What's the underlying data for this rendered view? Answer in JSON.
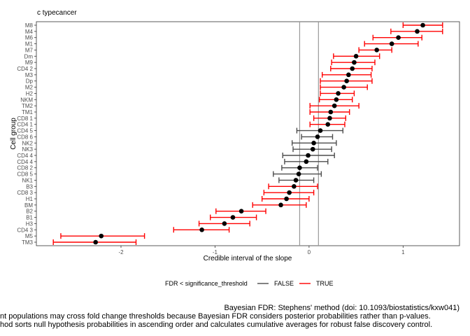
{
  "chart_data": {
    "type": "errorbar-dotplot",
    "title": "c typecancer",
    "xlabel": "Credible interval of the slope",
    "ylabel": "Cell group",
    "xlim": [
      -2.9,
      1.6
    ],
    "x_ticks": [
      -2,
      -1,
      0,
      1
    ],
    "x_tick_labels": [
      "-2",
      "-1",
      "0",
      "1"
    ],
    "reference_lines": [
      -0.1,
      0.1
    ],
    "legend": {
      "title": "FDR < significance_threshold",
      "position": "bottom",
      "entries": [
        {
          "label": "FALSE",
          "color": "#4d4d4d"
        },
        {
          "label": "TRUE",
          "color": "#ff0000"
        }
      ]
    },
    "series_colors": {
      "FALSE": "#4d4d4d",
      "TRUE": "#ff0000"
    },
    "points": [
      {
        "label": "M8",
        "estimate": 1.21,
        "lower": 1.0,
        "upper": 1.42,
        "significant": "TRUE"
      },
      {
        "label": "M4",
        "estimate": 1.15,
        "lower": 0.87,
        "upper": 1.42,
        "significant": "TRUE"
      },
      {
        "label": "M6",
        "estimate": 0.95,
        "lower": 0.68,
        "upper": 1.2,
        "significant": "TRUE"
      },
      {
        "label": "M1",
        "estimate": 0.88,
        "lower": 0.59,
        "upper": 1.16,
        "significant": "TRUE"
      },
      {
        "label": "M7",
        "estimate": 0.72,
        "lower": 0.53,
        "upper": 0.88,
        "significant": "TRUE"
      },
      {
        "label": "Dm",
        "estimate": 0.5,
        "lower": 0.26,
        "upper": 0.75,
        "significant": "TRUE"
      },
      {
        "label": "M9",
        "estimate": 0.48,
        "lower": 0.24,
        "upper": 0.7,
        "significant": "TRUE"
      },
      {
        "label": "CD4 2",
        "estimate": 0.46,
        "lower": 0.23,
        "upper": 0.67,
        "significant": "TRUE"
      },
      {
        "label": "M3",
        "estimate": 0.42,
        "lower": 0.14,
        "upper": 0.66,
        "significant": "TRUE"
      },
      {
        "label": "Dp",
        "estimate": 0.4,
        "lower": 0.12,
        "upper": 0.67,
        "significant": "TRUE"
      },
      {
        "label": "M2",
        "estimate": 0.37,
        "lower": 0.12,
        "upper": 0.62,
        "significant": "TRUE"
      },
      {
        "label": "H2",
        "estimate": 0.31,
        "lower": 0.12,
        "upper": 0.48,
        "significant": "TRUE"
      },
      {
        "label": "NKM",
        "estimate": 0.29,
        "lower": 0.11,
        "upper": 0.46,
        "significant": "TRUE"
      },
      {
        "label": "TM2",
        "estimate": 0.27,
        "lower": 0.01,
        "upper": 0.53,
        "significant": "TRUE"
      },
      {
        "label": "TM1",
        "estimate": 0.23,
        "lower": 0.01,
        "upper": 0.43,
        "significant": "TRUE"
      },
      {
        "label": "CD8 1",
        "estimate": 0.22,
        "lower": 0.05,
        "upper": 0.39,
        "significant": "TRUE"
      },
      {
        "label": "CD4 1",
        "estimate": 0.2,
        "lower": 0.01,
        "upper": 0.38,
        "significant": "TRUE"
      },
      {
        "label": "CD4 5",
        "estimate": 0.12,
        "lower": -0.13,
        "upper": 0.36,
        "significant": "FALSE"
      },
      {
        "label": "CD8 6",
        "estimate": 0.09,
        "lower": -0.08,
        "upper": 0.25,
        "significant": "FALSE"
      },
      {
        "label": "NK2",
        "estimate": 0.05,
        "lower": -0.18,
        "upper": 0.29,
        "significant": "FALSE"
      },
      {
        "label": "NK3",
        "estimate": 0.04,
        "lower": -0.17,
        "upper": 0.24,
        "significant": "FALSE"
      },
      {
        "label": "CD4 4",
        "estimate": -0.01,
        "lower": -0.28,
        "upper": 0.27,
        "significant": "FALSE"
      },
      {
        "label": "CD4 4",
        "estimate": -0.03,
        "lower": -0.26,
        "upper": 0.2,
        "significant": "FALSE"
      },
      {
        "label": "CD8 2",
        "estimate": -0.1,
        "lower": -0.29,
        "upper": 0.09,
        "significant": "FALSE"
      },
      {
        "label": "CD8 5",
        "estimate": -0.11,
        "lower": -0.38,
        "upper": 0.13,
        "significant": "FALSE"
      },
      {
        "label": "NK1",
        "estimate": -0.14,
        "lower": -0.32,
        "upper": 0.05,
        "significant": "FALSE"
      },
      {
        "label": "B3",
        "estimate": -0.16,
        "lower": -0.43,
        "upper": 0.09,
        "significant": "TRUE"
      },
      {
        "label": "CD8 3",
        "estimate": -0.21,
        "lower": -0.48,
        "upper": 0.05,
        "significant": "TRUE"
      },
      {
        "label": "H1",
        "estimate": -0.24,
        "lower": -0.5,
        "upper": 0.0,
        "significant": "TRUE"
      },
      {
        "label": "BM",
        "estimate": -0.3,
        "lower": -0.6,
        "upper": -0.03,
        "significant": "TRUE"
      },
      {
        "label": "B2",
        "estimate": -0.72,
        "lower": -0.99,
        "upper": -0.46,
        "significant": "TRUE"
      },
      {
        "label": "B1",
        "estimate": -0.81,
        "lower": -1.05,
        "upper": -0.56,
        "significant": "TRUE"
      },
      {
        "label": "H3",
        "estimate": -0.9,
        "lower": -1.17,
        "upper": -0.63,
        "significant": "TRUE"
      },
      {
        "label": "CD4 3",
        "estimate": -1.14,
        "lower": -1.44,
        "upper": -0.85,
        "significant": "TRUE"
      },
      {
        "label": "M5",
        "estimate": -2.21,
        "lower": -2.64,
        "upper": -1.75,
        "significant": "TRUE"
      },
      {
        "label": "TM3",
        "estimate": -2.27,
        "lower": -2.72,
        "upper": -1.84,
        "significant": "TRUE"
      }
    ]
  },
  "caption": {
    "line1": "Bayesian FDR: Stephens' method (doi: 10.1093/biostatistics/kxw041)",
    "line2": "nt populations may cross fold change thresholds because Bayesian FDR considers posterior probabilities rather than p-values.",
    "line3": "hod sorts null hypothesis probabilities in ascending order and calculates cumulative averages for robust false discovery control."
  }
}
